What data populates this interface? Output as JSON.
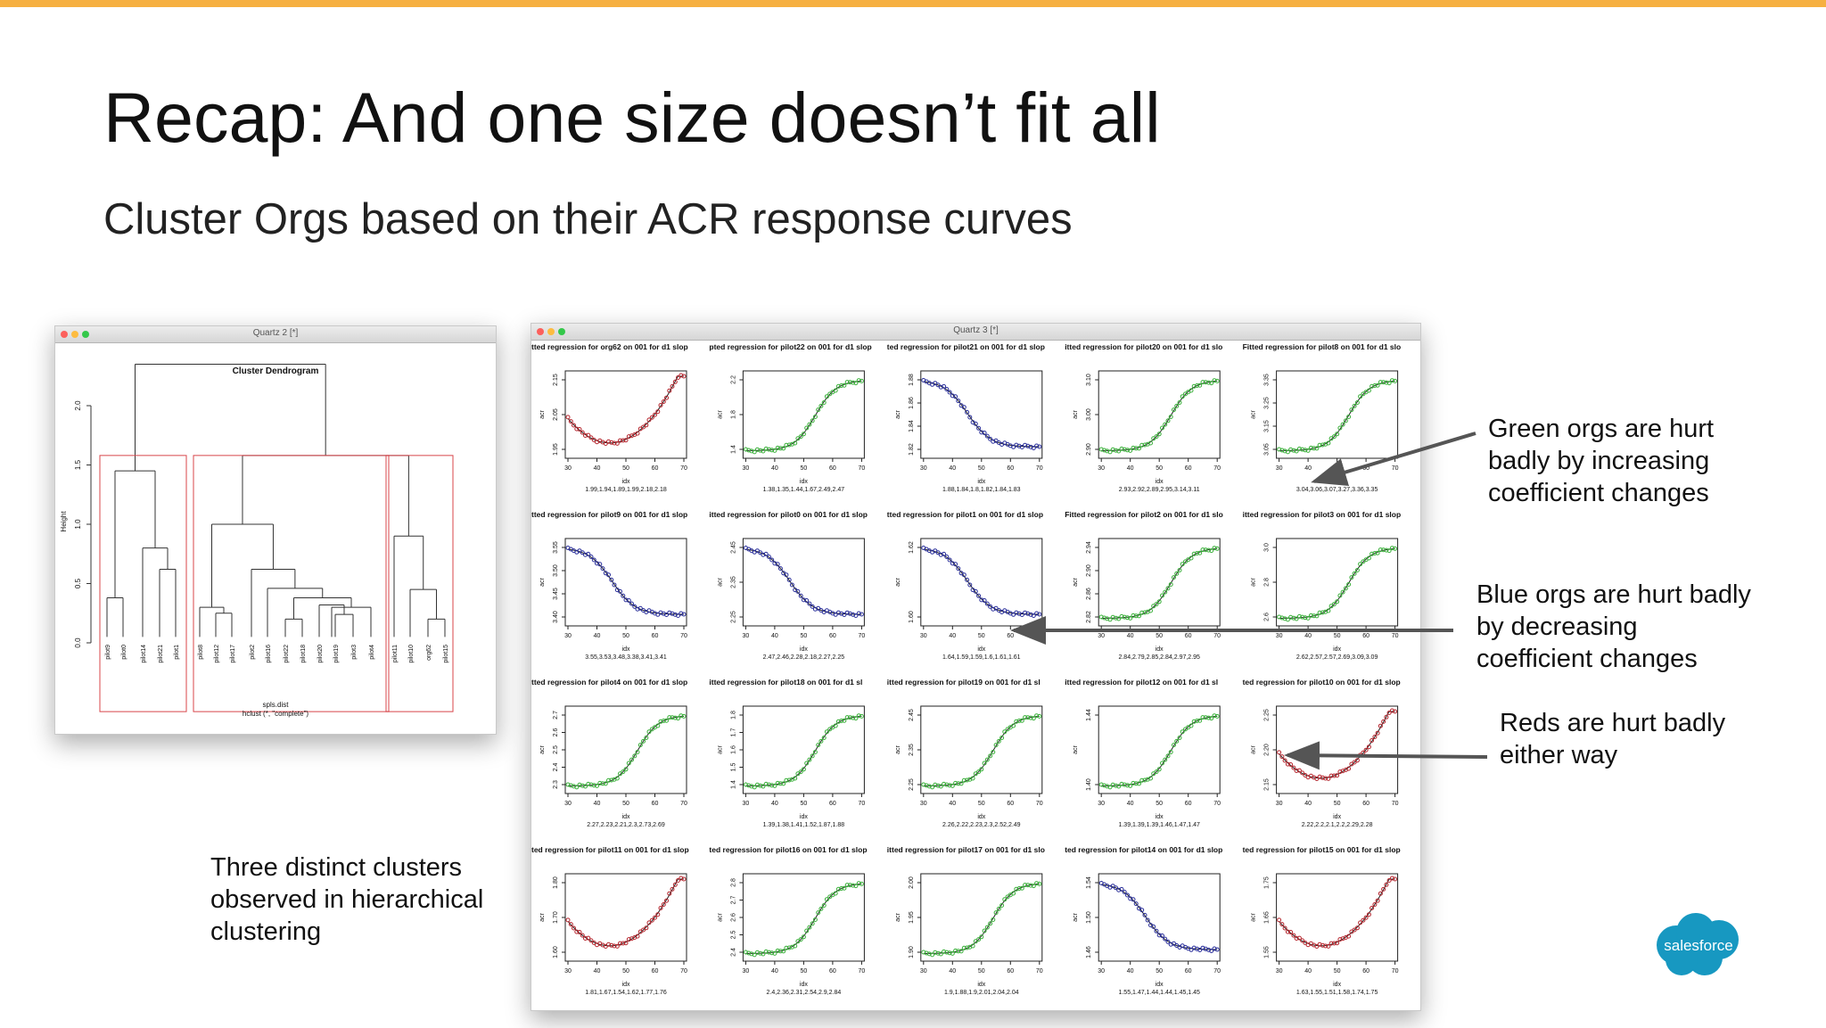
{
  "slide": {
    "title": "Recap: And one size doesn’t fit all",
    "subtitle": "Cluster Orgs based on their ACR response curves"
  },
  "dendrogram_window": {
    "title": "Quartz 2 [*]",
    "plot_title": "Cluster Dendrogram",
    "ylabel": "Height",
    "y_ticks": [
      "0.0",
      "0.5",
      "1.0",
      "1.5",
      "2.0"
    ],
    "leaves": [
      "pilot9",
      "pilot0",
      "pilot14",
      "pilot21",
      "pilot1",
      "pilot8",
      "pilot12",
      "pilot17",
      "pilot2",
      "pilot16",
      "pilot22",
      "pilot18",
      "pilot20",
      "pilot19",
      "pilot3",
      "pilot4",
      "pilot11",
      "pilot10",
      "org62",
      "pilot15"
    ],
    "xlabel": "spls.dist",
    "method": "hclust (*, \"complete\")"
  },
  "grid_window": {
    "title": "Quartz 3 [*]",
    "axis_label_y": "acr",
    "axis_label_x": "idx",
    "x_ticks": [
      "30",
      "40",
      "50",
      "60",
      "70"
    ],
    "panels": [
      {
        "title": "tted regression for org62 on 001 for d1 slop",
        "color": "#b5262e",
        "shape": "u",
        "yt": [
          "1.95",
          "2.05",
          "2.15"
        ],
        "coefs": "1.99,1.94,1.89,1.99,2.18,2.18"
      },
      {
        "title": "pted regression for pilot22 on 001 for d1 slop",
        "color": "#3aaf3a",
        "shape": "inc",
        "yt": [
          "1.4",
          "1.8",
          "2.2"
        ],
        "coefs": "1.38,1.35,1.44,1.67,2.49,2.47"
      },
      {
        "title": "ted regression for pilot21 on 001 for d1 slop",
        "color": "#2a2f9a",
        "shape": "dec",
        "yt": [
          "1.82",
          "1.84",
          "1.86",
          "1.88"
        ],
        "coefs": "1.88,1.84,1.8,1.82,1.84,1.83"
      },
      {
        "title": "itted regression for pilot20 on 001 for d1 slo",
        "color": "#3aaf3a",
        "shape": "inc",
        "yt": [
          "2.90",
          "3.00",
          "3.10"
        ],
        "coefs": "2.93,2.92,2.89,2.95,3.14,3.11"
      },
      {
        "title": "Fitted regression for pilot8 on 001 for d1 slo",
        "color": "#3aaf3a",
        "shape": "inc",
        "yt": [
          "3.05",
          "3.15",
          "3.25",
          "3.35"
        ],
        "coefs": "3.04,3.06,3.07,3.27,3.36,3.35"
      },
      {
        "title": "tted regression for pilot9 on 001 for d1 slop",
        "color": "#2a2f9a",
        "shape": "dec",
        "yt": [
          "3.40",
          "3.45",
          "3.50",
          "3.55"
        ],
        "coefs": "3.55,3.53,3.48,3.38,3.41,3.41"
      },
      {
        "title": "itted regression for pilot0 on 001 for d1 slop",
        "color": "#2a2f9a",
        "shape": "dec",
        "yt": [
          "2.25",
          "2.35",
          "2.45"
        ],
        "coefs": "2.47,2.46,2.28,2.18,2.27,2.25"
      },
      {
        "title": "tted regression for pilot1 on 001 for d1 slop",
        "color": "#2a2f9a",
        "shape": "dec",
        "yt": [
          "1.60",
          "1.62"
        ],
        "coefs": "1.64,1.59,1.59,1.6,1.61,1.61"
      },
      {
        "title": "Fitted regression for pilot2 on 001 for d1 slo",
        "color": "#3aaf3a",
        "shape": "inc",
        "yt": [
          "2.82",
          "2.86",
          "2.90",
          "2.94"
        ],
        "coefs": "2.84,2.79,2.85,2.84,2.97,2.95"
      },
      {
        "title": "itted regression for pilot3 on 001 for d1 slop",
        "color": "#3aaf3a",
        "shape": "inc",
        "yt": [
          "2.6",
          "2.8",
          "3.0"
        ],
        "coefs": "2.62,2.57,2.57,2.69,3.09,3.09"
      },
      {
        "title": "tted regression for pilot4 on 001 for d1 slop",
        "color": "#3aaf3a",
        "shape": "inc",
        "yt": [
          "2.3",
          "2.4",
          "2.5",
          "2.6",
          "2.7"
        ],
        "coefs": "2.27,2.23,2.21,2.3,2.73,2.69"
      },
      {
        "title": "itted regression for pilot18 on 001 for d1 sl",
        "color": "#3aaf3a",
        "shape": "inc",
        "yt": [
          "1.4",
          "1.5",
          "1.6",
          "1.7",
          "1.8"
        ],
        "coefs": "1.39,1.38,1.41,1.52,1.87,1.88"
      },
      {
        "title": "itted regression for pilot19 on 001 for d1 sl",
        "color": "#3aaf3a",
        "shape": "inc",
        "yt": [
          "2.25",
          "2.35",
          "2.45"
        ],
        "coefs": "2.26,2.22,2.23,2.3,2.52,2.49"
      },
      {
        "title": "itted regression for pilot12 on 001 for d1 sl",
        "color": "#3aaf3a",
        "shape": "inc",
        "yt": [
          "1.40",
          "1.44"
        ],
        "coefs": "1.39,1.39,1.39,1.46,1.47,1.47"
      },
      {
        "title": "ted regression for pilot10 on 001 for d1 slop",
        "color": "#b5262e",
        "shape": "u",
        "yt": [
          "2.15",
          "2.20",
          "2.25"
        ],
        "coefs": "2.22,2.2,2.1,2.2,2.29,2.28"
      },
      {
        "title": "ted regression for pilot11 on 001 for d1 slop",
        "color": "#b5262e",
        "shape": "u",
        "yt": [
          "1.60",
          "1.70",
          "1.80"
        ],
        "coefs": "1.81,1.67,1.54,1.62,1.77,1.76"
      },
      {
        "title": "ted regression for pilot16 on 001 for d1 slop",
        "color": "#3aaf3a",
        "shape": "inc",
        "yt": [
          "2.4",
          "2.5",
          "2.6",
          "2.7",
          "2.8"
        ],
        "coefs": "2.4,2.36,2.31,2.54,2.9,2.84"
      },
      {
        "title": "itted regression for pilot17 on 001 for d1 slo",
        "color": "#3aaf3a",
        "shape": "inc",
        "yt": [
          "1.90",
          "1.95",
          "2.00"
        ],
        "coefs": "1.9,1.88,1.9,2.01,2.04,2.04"
      },
      {
        "title": "ted regression for pilot14 on 001 for d1 slop",
        "color": "#2a2f9a",
        "shape": "dec",
        "yt": [
          "1.46",
          "1.50",
          "1.54"
        ],
        "coefs": "1.55,1.47,1.44,1.44,1.45,1.45"
      },
      {
        "title": "ted regression for pilot15 on 001 for d1 slop",
        "color": "#b5262e",
        "shape": "u",
        "yt": [
          "1.55",
          "1.65",
          "1.75"
        ],
        "coefs": "1.63,1.55,1.51,1.58,1.74,1.75"
      }
    ]
  },
  "annotations": {
    "green": [
      "Green orgs are hurt",
      "badly by increasing",
      "coefficient changes"
    ],
    "blue": [
      "Blue orgs are hurt badly",
      "by decreasing",
      "coefficient changes"
    ],
    "red": [
      "Reds are hurt badly",
      "either way"
    ],
    "clusters": [
      "Three distinct clusters",
      "observed in hierarchical",
      "clustering"
    ]
  },
  "logo": {
    "text": "salesforce",
    "color": "#1798c1"
  },
  "colors": {
    "accent_bar": "#f6b041",
    "green": "#3aaf3a",
    "blue": "#2a2f9a",
    "red": "#b5262e"
  }
}
